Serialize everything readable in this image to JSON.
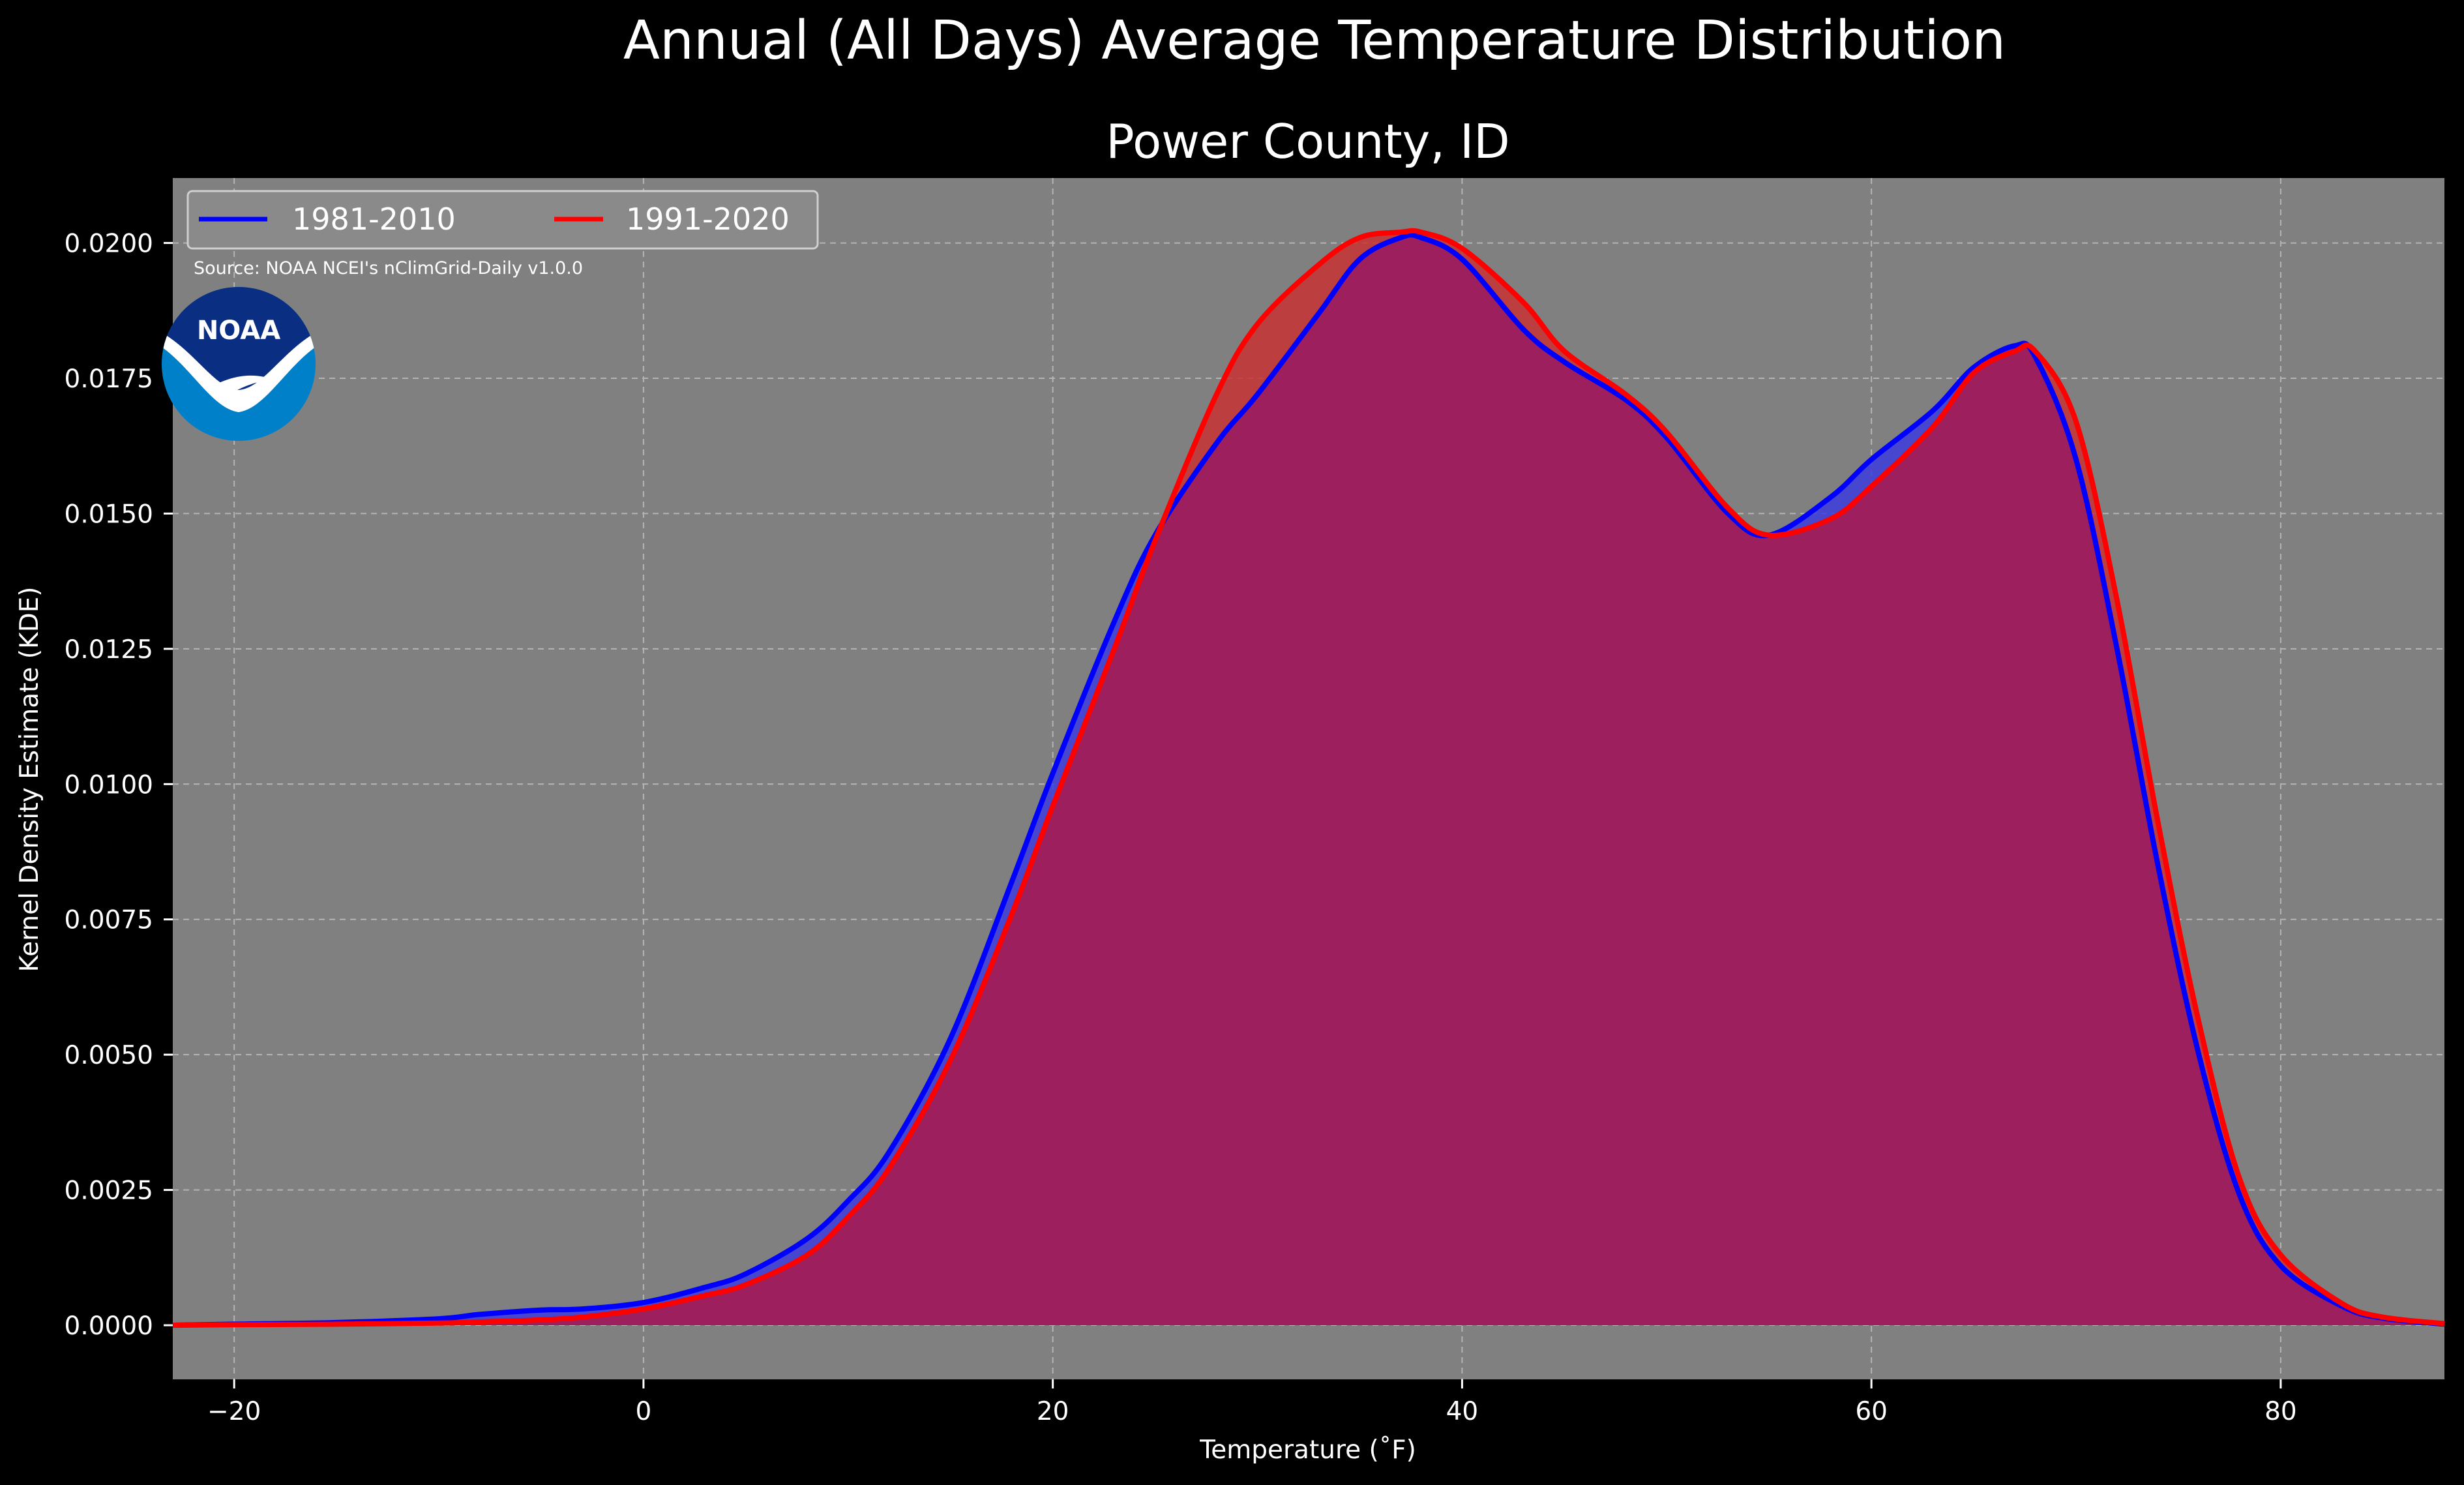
{
  "chart_data": {
    "type": "area",
    "title": "Annual (All Days) Average Temperature Distribution",
    "subtitle": "Power County, ID",
    "xlabel": "Temperature (˚F)",
    "ylabel": "Kernel Density Estimate (KDE)",
    "xlim": [
      -23,
      88
    ],
    "ylim": [
      -0.001,
      0.0212
    ],
    "xticks": [
      -20,
      0,
      20,
      40,
      60,
      80
    ],
    "xtick_labels": [
      "−20",
      "0",
      "20",
      "40",
      "60",
      "80"
    ],
    "yticks": [
      0,
      0.0025,
      0.005,
      0.0075,
      0.01,
      0.0125,
      0.015,
      0.0175,
      0.02
    ],
    "ytick_labels": [
      "0.0000",
      "0.0025",
      "0.0050",
      "0.0075",
      "0.0100",
      "0.0125",
      "0.0150",
      "0.0175",
      "0.0200"
    ],
    "grid": true,
    "legend_position": "top-left",
    "x": [
      -23,
      -20,
      -15,
      -10,
      -8,
      -5,
      -3,
      0,
      3,
      5,
      8,
      10,
      12,
      15,
      18,
      20,
      23,
      25,
      28,
      30,
      33,
      35,
      37,
      38,
      40,
      43,
      45,
      48,
      50,
      53,
      55,
      58,
      60,
      63,
      65,
      67,
      68,
      70,
      72,
      74,
      76,
      78,
      80,
      83,
      85,
      88
    ],
    "series": [
      {
        "name": "1981-2010",
        "color": "#0000ff",
        "fill": "#3c3cdc",
        "values": [
          0.0,
          2e-05,
          5e-05,
          0.00012,
          0.0002,
          0.00028,
          0.0003,
          0.00042,
          0.0007,
          0.00095,
          0.0016,
          0.0023,
          0.0032,
          0.0053,
          0.0082,
          0.0102,
          0.013,
          0.0146,
          0.0163,
          0.0172,
          0.0187,
          0.0197,
          0.0201,
          0.0201,
          0.0197,
          0.0184,
          0.0178,
          0.0171,
          0.0164,
          0.015,
          0.0146,
          0.0153,
          0.016,
          0.0169,
          0.0177,
          0.0181,
          0.0179,
          0.016,
          0.0125,
          0.0085,
          0.005,
          0.0024,
          0.0011,
          0.00035,
          0.00013,
          2e-05
        ]
      },
      {
        "name": "1991-2020",
        "color": "#ff0000",
        "fill": "#c83232",
        "values": [
          0.0,
          1e-05,
          2e-05,
          4e-05,
          6e-05,
          0.0001,
          0.00015,
          0.0003,
          0.00055,
          0.00075,
          0.0013,
          0.002,
          0.0029,
          0.0049,
          0.0076,
          0.0096,
          0.0125,
          0.0145,
          0.0172,
          0.0185,
          0.0196,
          0.0201,
          0.0202,
          0.0202,
          0.0199,
          0.0189,
          0.018,
          0.0172,
          0.0165,
          0.0151,
          0.0146,
          0.0149,
          0.0155,
          0.0166,
          0.0176,
          0.018,
          0.018,
          0.0167,
          0.0134,
          0.0093,
          0.0056,
          0.0027,
          0.0013,
          0.0004,
          0.00015,
          3e-05
        ]
      }
    ]
  },
  "source_note": "Source: NOAA NCEI's nClimGrid-Daily v1.0.0",
  "logo": {
    "text": "NOAA",
    "color_top": "#0a2f82",
    "color_bottom": "#0080c8"
  },
  "colors": {
    "background": "#000000",
    "axes_bg": "#808080",
    "overlap": "#9e1f5e"
  }
}
